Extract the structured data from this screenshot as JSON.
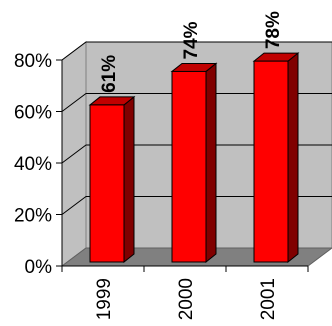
{
  "chart_data": {
    "type": "bar",
    "title": "",
    "xlabel": "",
    "ylabel": "",
    "categories": [
      "1999",
      "2000",
      "2001"
    ],
    "values": [
      61,
      74,
      78
    ],
    "data_labels": [
      "61%",
      "74%",
      "78%"
    ],
    "y_ticks": [
      {
        "value": 0,
        "label": "0%"
      },
      {
        "value": 20,
        "label": "20%"
      },
      {
        "value": 40,
        "label": "40%"
      },
      {
        "value": 60,
        "label": "60%"
      },
      {
        "value": 80,
        "label": "80%"
      }
    ],
    "ylim": [
      0,
      80
    ],
    "grid": true,
    "legend": "none",
    "bar_style": "3d",
    "colors": {
      "bar_front": "#ff0000",
      "bar_side": "#800000",
      "bar_top": "#c00000",
      "back_wall": "#c0c0c0",
      "floor": "#808080",
      "gridline": "#000000"
    }
  }
}
